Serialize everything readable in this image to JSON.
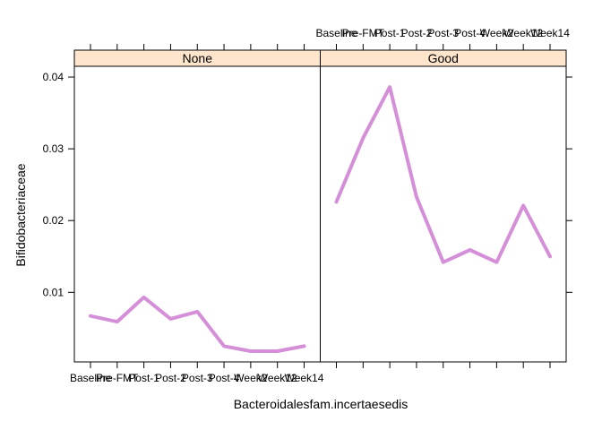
{
  "chart_data": {
    "type": "line",
    "xlabel": "Bacteroidalesfam.incertaesedis",
    "ylabel": "Bifidobacteriaceae",
    "categories": [
      "Baseline",
      "Pre-FMT",
      "Post-1",
      "Post-2",
      "Post-3",
      "Post-4",
      "Week2",
      "Week12",
      "Week14"
    ],
    "ylim": [
      0.0003,
      0.0415
    ],
    "yticks": [
      0.01,
      0.02,
      0.03,
      0.04
    ],
    "ytick_labels": [
      "0.01",
      "0.02",
      "0.03",
      "0.04"
    ],
    "line_color": "#d48fd8",
    "strip_color": "#ffe5cc",
    "panels": [
      {
        "strip_label": "None",
        "values": [
          0.0067,
          0.0059,
          0.0093,
          0.0063,
          0.0073,
          0.0025,
          0.0018,
          0.0018,
          0.0025
        ]
      },
      {
        "strip_label": "Good",
        "values": [
          0.0226,
          0.0315,
          0.0386,
          0.0233,
          0.0142,
          0.0159,
          0.0142,
          0.0221,
          0.015
        ]
      }
    ]
  }
}
